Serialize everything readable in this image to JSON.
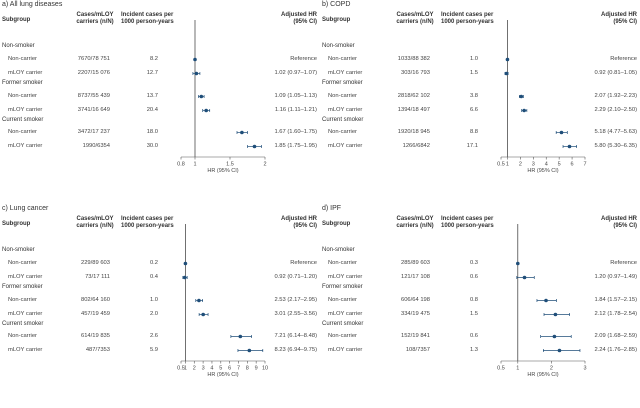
{
  "colors": {
    "marker": "#1f4e79",
    "axis": "#555555",
    "refline": "#333333"
  },
  "headers": {
    "subgroup": "Subgroup",
    "cases": [
      "Cases/mLOY",
      "carriers (n/N)"
    ],
    "incident": [
      "Incident cases per",
      "1000 person-years"
    ],
    "hr": [
      "Adjusted HR",
      "(95% CI)"
    ]
  },
  "chart_data": [
    {
      "type": "forest",
      "title": "a) All lung diseases",
      "xlabel": "HR (95% CI)",
      "xlim": [
        0.8,
        2.0
      ],
      "xticks": [
        0.8,
        1,
        1.5,
        2
      ],
      "xticklabels": [
        "0.8",
        "1",
        "1.5",
        "2"
      ],
      "ref": 1,
      "groups": [
        {
          "name": "Non-smoker",
          "rows": [
            {
              "label": "Non-carrier",
              "cases": "7670/78 751",
              "rate": "8.2",
              "hr_text": "Reference",
              "hr": 1,
              "lo": null,
              "hi": null
            },
            {
              "label": "mLOY carrier",
              "cases": "2207/15 076",
              "rate": "12.7",
              "hr_text": "1.02 (0.97–1.07)",
              "hr": 1.02,
              "lo": 0.97,
              "hi": 1.07
            }
          ]
        },
        {
          "name": "Former smoker",
          "rows": [
            {
              "label": "Non-carrier",
              "cases": "8737/55 439",
              "rate": "13.7",
              "hr_text": "1.09 (1.05–1.13)",
              "hr": 1.09,
              "lo": 1.05,
              "hi": 1.13
            },
            {
              "label": "mLOY carrier",
              "cases": "3741/16 649",
              "rate": "20.4",
              "hr_text": "1.16 (1.11–1.21)",
              "hr": 1.16,
              "lo": 1.11,
              "hi": 1.21
            }
          ]
        },
        {
          "name": "Current smoker",
          "rows": [
            {
              "label": "Non-carrier",
              "cases": "3472/17 237",
              "rate": "18.0",
              "hr_text": "1.67 (1.60–1.75)",
              "hr": 1.67,
              "lo": 1.6,
              "hi": 1.75
            },
            {
              "label": "mLOY carrier",
              "cases": "1990/6354",
              "rate": "30.0",
              "hr_text": "1.85 (1.75–1.95)",
              "hr": 1.85,
              "lo": 1.75,
              "hi": 1.95
            }
          ]
        }
      ]
    },
    {
      "type": "forest",
      "title": "b) COPD",
      "xlabel": "HR (95% CI)",
      "xlim": [
        0.5,
        7
      ],
      "xticks": [
        0.5,
        1,
        2,
        3,
        4,
        5,
        6,
        7
      ],
      "xticklabels": [
        "0.5",
        "1",
        "2",
        "3",
        "4",
        "5",
        "6",
        "7"
      ],
      "ref": 1,
      "groups": [
        {
          "name": "Non-smoker",
          "rows": [
            {
              "label": "Non-carrier",
              "cases": "1033/88 382",
              "rate": "1.0",
              "hr_text": "Reference",
              "hr": 1,
              "lo": null,
              "hi": null
            },
            {
              "label": "mLOY carrier",
              "cases": "303/16 793",
              "rate": "1.5",
              "hr_text": "0.92 (0.81–1.05)",
              "hr": 0.92,
              "lo": 0.81,
              "hi": 1.05
            }
          ]
        },
        {
          "name": "Former smoker",
          "rows": [
            {
              "label": "Non-carrier",
              "cases": "2818/62 102",
              "rate": "3.8",
              "hr_text": "2.07 (1.92–2.23)",
              "hr": 2.07,
              "lo": 1.92,
              "hi": 2.23
            },
            {
              "label": "mLOY carrier",
              "cases": "1394/18 497",
              "rate": "6.6",
              "hr_text": "2.29 (2.10–2.50)",
              "hr": 2.29,
              "lo": 2.1,
              "hi": 2.5
            }
          ]
        },
        {
          "name": "Current smoker",
          "rows": [
            {
              "label": "Non-carrier",
              "cases": "1920/18 945",
              "rate": "8.8",
              "hr_text": "5.18 (4.77–5.63)",
              "hr": 5.18,
              "lo": 4.77,
              "hi": 5.63
            },
            {
              "label": "mLOY carrier",
              "cases": "1266/6842",
              "rate": "17.1",
              "hr_text": "5.80 (5.30–6.35)",
              "hr": 5.8,
              "lo": 5.3,
              "hi": 6.35
            }
          ]
        }
      ]
    },
    {
      "type": "forest",
      "title": "c) Lung cancer",
      "xlabel": "HR (95% CI)",
      "xlim": [
        0.5,
        10
      ],
      "xticks": [
        0.5,
        1,
        2,
        3,
        4,
        5,
        6,
        7,
        8,
        9,
        10
      ],
      "xticklabels": [
        "0.5",
        "1",
        "2",
        "3",
        "4",
        "5",
        "6",
        "7",
        "8",
        "9",
        "10"
      ],
      "ref": 1,
      "groups": [
        {
          "name": "Non-smoker",
          "rows": [
            {
              "label": "Non-carrier",
              "cases": "229/89 603",
              "rate": "0.2",
              "hr_text": "Reference",
              "hr": 1,
              "lo": null,
              "hi": null
            },
            {
              "label": "mLOY carrier",
              "cases": "73/17 111",
              "rate": "0.4",
              "hr_text": "0.92 (0.71–1.20)",
              "hr": 0.92,
              "lo": 0.71,
              "hi": 1.2
            }
          ]
        },
        {
          "name": "Former smoker",
          "rows": [
            {
              "label": "Non-carrier",
              "cases": "802/64 160",
              "rate": "1.0",
              "hr_text": "2.53 (2.17–2.95)",
              "hr": 2.53,
              "lo": 2.17,
              "hi": 2.95
            },
            {
              "label": "mLOY carrier",
              "cases": "457/19 459",
              "rate": "2.0",
              "hr_text": "3.01 (2.55–3.56)",
              "hr": 3.01,
              "lo": 2.55,
              "hi": 3.56
            }
          ]
        },
        {
          "name": "Current smoker",
          "rows": [
            {
              "label": "Non-carrier",
              "cases": "614/19 835",
              "rate": "2.6",
              "hr_text": "7.21 (6.14–8.48)",
              "hr": 7.21,
              "lo": 6.14,
              "hi": 8.48
            },
            {
              "label": "mLOY carrier",
              "cases": "487/7353",
              "rate": "5.9",
              "hr_text": "8.23 (6.94–9.75)",
              "hr": 8.23,
              "lo": 6.94,
              "hi": 9.75
            }
          ]
        }
      ]
    },
    {
      "type": "forest",
      "title": "d) IPF",
      "xlabel": "HR (95% CI)",
      "xlim": [
        0.5,
        3
      ],
      "xticks": [
        0.5,
        1,
        2,
        3
      ],
      "xticklabels": [
        "0.5",
        "1",
        "2",
        "3"
      ],
      "ref": 1,
      "groups": [
        {
          "name": "Non-smoker",
          "rows": [
            {
              "label": "Non-carrier",
              "cases": "285/89 603",
              "rate": "0.3",
              "hr_text": "Reference",
              "hr": 1,
              "lo": null,
              "hi": null
            },
            {
              "label": "mLOY carrier",
              "cases": "121/17 108",
              "rate": "0.6",
              "hr_text": "1.20 (0.97–1.49)",
              "hr": 1.2,
              "lo": 0.97,
              "hi": 1.49
            }
          ]
        },
        {
          "name": "Former smoker",
          "rows": [
            {
              "label": "Non-carrier",
              "cases": "606/64 198",
              "rate": "0.8",
              "hr_text": "1.84 (1.57–2.15)",
              "hr": 1.84,
              "lo": 1.57,
              "hi": 2.15
            },
            {
              "label": "mLOY carrier",
              "cases": "334/19 475",
              "rate": "1.5",
              "hr_text": "2.12 (1.78–2.54)",
              "hr": 2.12,
              "lo": 1.78,
              "hi": 2.54
            }
          ]
        },
        {
          "name": "Current smoker",
          "rows": [
            {
              "label": "Non-carrier",
              "cases": "152/19 841",
              "rate": "0.6",
              "hr_text": "2.09 (1.68–2.59)",
              "hr": 2.09,
              "lo": 1.68,
              "hi": 2.59
            },
            {
              "label": "mLOY carrier",
              "cases": "108/7357",
              "rate": "1.3",
              "hr_text": "2.24 (1.76–2.85)",
              "hr": 2.24,
              "lo": 1.76,
              "hi": 2.85
            }
          ]
        }
      ]
    }
  ]
}
